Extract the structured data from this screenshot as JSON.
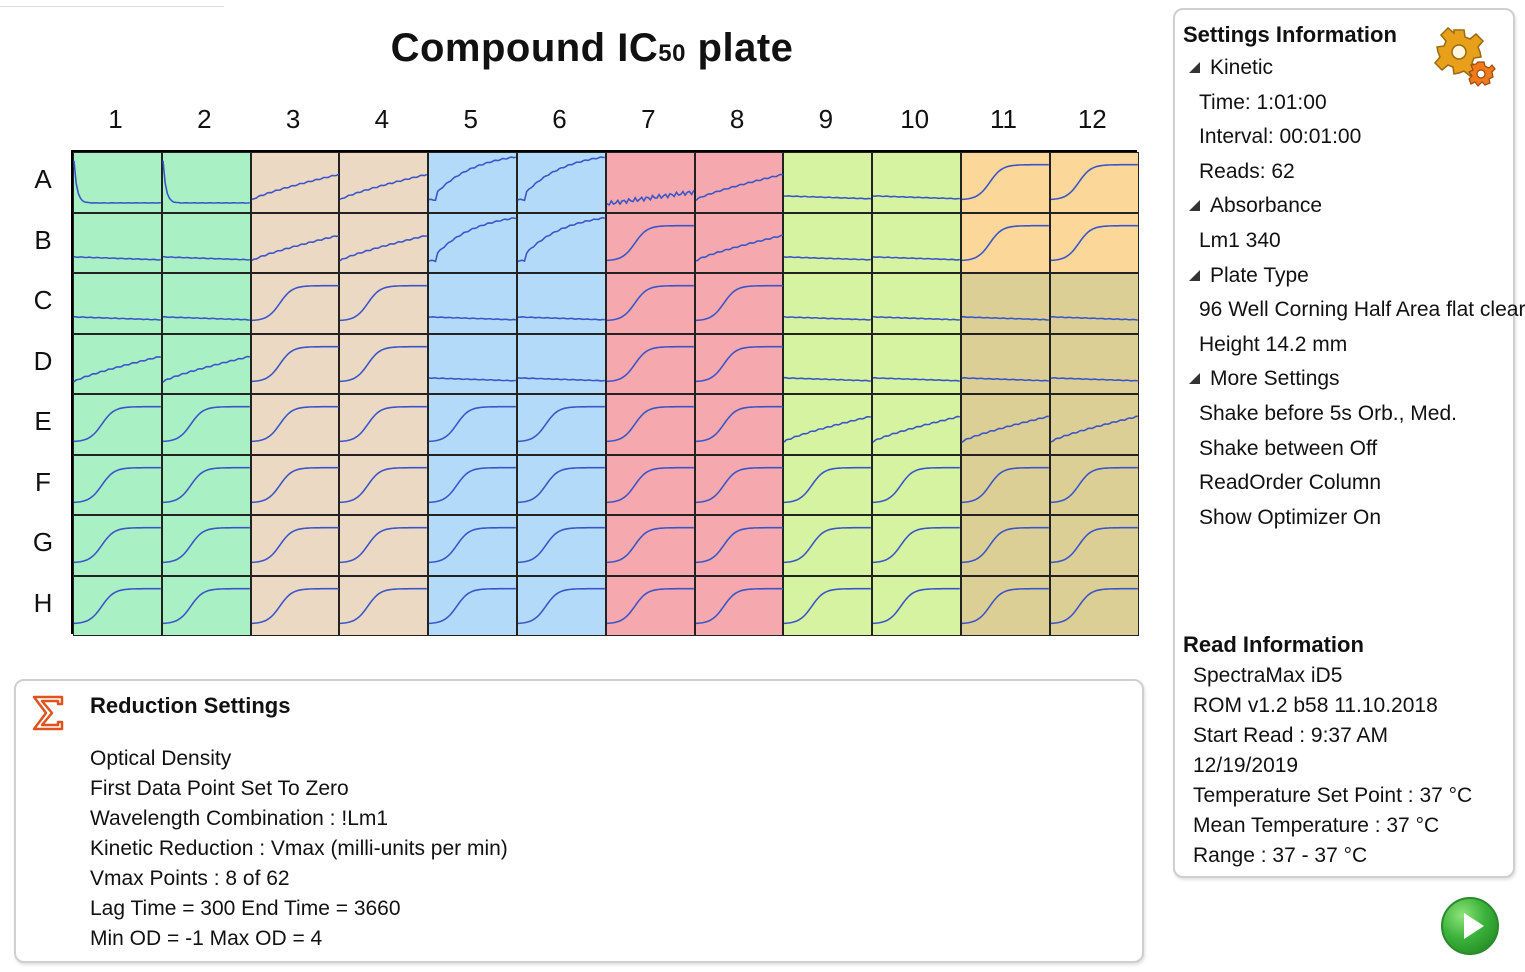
{
  "title": {
    "main": "Compound  IC",
    "sub": "50",
    "tail": " plate"
  },
  "plate": {
    "columns": [
      "1",
      "2",
      "3",
      "4",
      "5",
      "6",
      "7",
      "8",
      "9",
      "10",
      "11",
      "12"
    ],
    "rows": [
      "A",
      "B",
      "C",
      "D",
      "E",
      "F",
      "G",
      "H"
    ],
    "column_colors": [
      "#a9f0c5",
      "#a9f0c5",
      "#ecd9c4",
      "#ecd9c4",
      "#b4dafa",
      "#b4dafa",
      "#f5a8ad",
      "#f5a8ad",
      "#d6f3a2",
      "#d6f3a2",
      "#fbd79a",
      "#fbd79a"
    ],
    "dark_tan_color": "#dccf96",
    "trace_color": "#3b55c8",
    "cells": [
      [
        "fall",
        "fall",
        "rise",
        "rise",
        "steep",
        "steep",
        "noisy",
        "rise",
        "flat",
        "flat",
        "sig",
        "sig"
      ],
      [
        "flat",
        "flat",
        "rise",
        "rise",
        "steep",
        "steep",
        "sig",
        "rise",
        "flat",
        "flat",
        "sig",
        "sig"
      ],
      [
        "flat",
        "flat",
        "sig",
        "sig",
        "flat",
        "flat",
        "sig",
        "sig",
        "flat",
        "flat",
        "flat",
        "flat"
      ],
      [
        "rise",
        "rise",
        "sig",
        "sig",
        "flat",
        "flat",
        "sig",
        "sig",
        "flat",
        "flat",
        "flat",
        "flat"
      ],
      [
        "sig",
        "sig",
        "sig",
        "sig",
        "sig",
        "sig",
        "sig",
        "sig",
        "rise",
        "rise",
        "rise",
        "rise"
      ],
      [
        "sig",
        "sig",
        "sig",
        "sig",
        "sig",
        "sig",
        "sig",
        "sig",
        "sig",
        "sig",
        "sig",
        "sig"
      ],
      [
        "sig",
        "sig",
        "sig",
        "sig",
        "sig",
        "sig",
        "sig",
        "sig",
        "sig",
        "sig",
        "sig",
        "sig"
      ],
      [
        "sig",
        "sig",
        "sig",
        "sig",
        "sig",
        "sig",
        "sig",
        "sig",
        "sig",
        "sig",
        "sig",
        "sig"
      ]
    ],
    "dark_cells": [
      "C11",
      "C12",
      "D11",
      "D12",
      "E11",
      "E12",
      "F11",
      "F12",
      "G11",
      "G12",
      "H11",
      "H12"
    ]
  },
  "reduction": {
    "icon": "sigma-icon",
    "title": "Reduction Settings",
    "lines": [
      "Optical Density",
      "First Data Point Set To Zero",
      "Wavelength Combination : !Lm1",
      "Kinetic Reduction : Vmax (milli-units per min)",
      "Vmax Points : 8 of 62",
      "Lag Time = 300 End Time = 3660",
      "Min OD = -1 Max OD = 4"
    ]
  },
  "settings": {
    "title": "Settings Information",
    "icon": "gear-icon",
    "sections": [
      {
        "name": "Kinetic",
        "items": [
          "Time:  1:01:00",
          "Interval:  00:01:00",
          "Reads:  62"
        ]
      },
      {
        "name": "Absorbance",
        "items": [
          "Lm1     340"
        ]
      },
      {
        "name": "Plate Type",
        "items": [
          "96 Well Corning Half Area flat clear",
          "Height  14.2 mm"
        ]
      },
      {
        "name": "More Settings",
        "items": [
          "Shake before  5s Orb., Med.",
          "Shake between  Off",
          "ReadOrder  Column",
          "Show Optimizer  On"
        ]
      }
    ]
  },
  "read_info": {
    "title": "Read Information",
    "lines": [
      "SpectraMax iD5",
      "ROM v1.2 b58 11.10.2018",
      "Start Read : 9:37 AM",
      "12/19/2019",
      "Temperature Set Point : 37 °C",
      "Mean Temperature : 37 °C",
      "Range : 37 - 37 °C"
    ]
  },
  "run_button": {
    "icon": "play-icon"
  }
}
